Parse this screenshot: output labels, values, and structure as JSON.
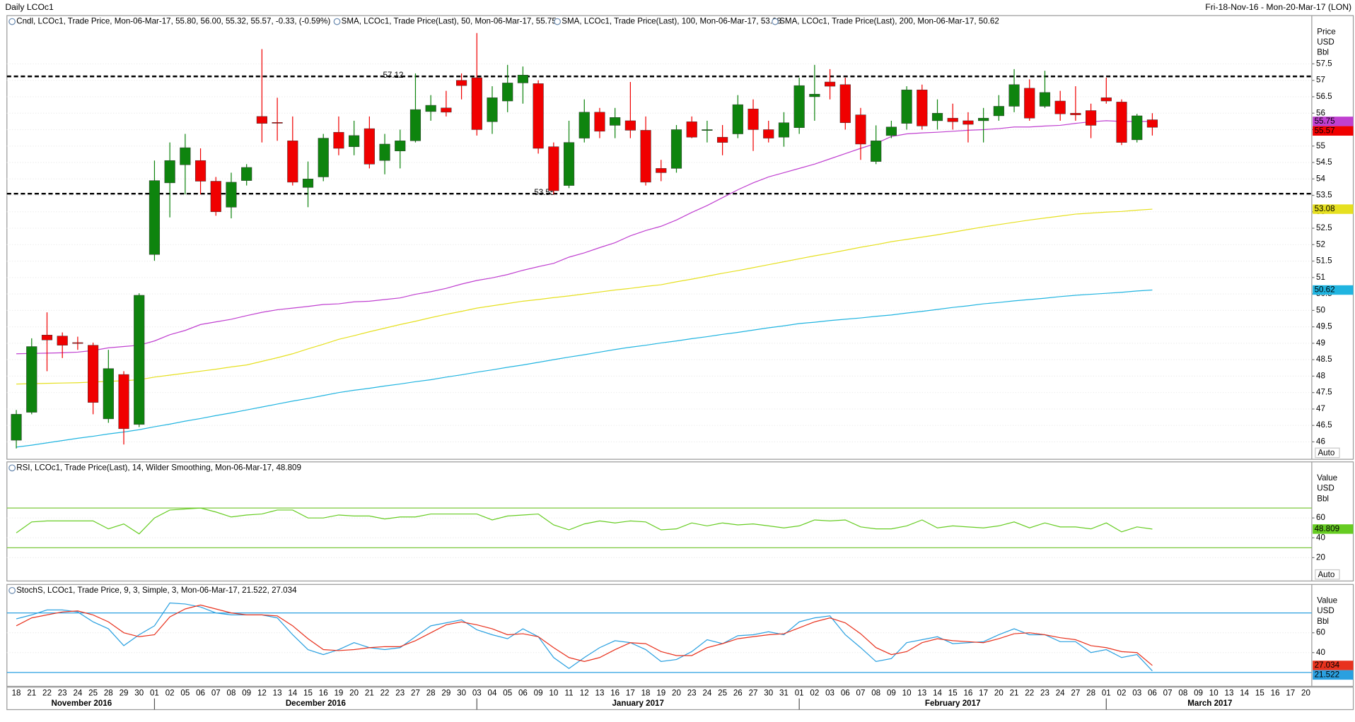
{
  "header": {
    "title": "Daily LCOc1",
    "range": "Fri-18-Nov-16 - Mon-20-Mar-17 (LON)"
  },
  "chart_data": [
    {
      "type": "candlestick",
      "legend": "Cndl, LCOc1, Trade Price, Mon-06-Mar-17, 55.80, 56.00, 55.32, 55.57, -0.33, (-0.59%)",
      "legend_color": "#e00000",
      "categories": [
        "18",
        "21",
        "22",
        "23",
        "24",
        "25",
        "28",
        "29",
        "30",
        "01",
        "02",
        "05",
        "06",
        "07",
        "08",
        "09",
        "12",
        "13",
        "14",
        "15",
        "16",
        "19",
        "20",
        "21",
        "22",
        "23",
        "27",
        "28",
        "29",
        "30",
        "03",
        "04",
        "05",
        "06",
        "09",
        "10",
        "11",
        "12",
        "13",
        "16",
        "17",
        "18",
        "19",
        "20",
        "23",
        "24",
        "25",
        "26",
        "27",
        "30",
        "31",
        "01",
        "02",
        "03",
        "06",
        "07",
        "08",
        "09",
        "10",
        "13",
        "14",
        "15",
        "16",
        "17",
        "20",
        "21",
        "22",
        "23",
        "24",
        "27",
        "28",
        "01",
        "02",
        "03",
        "06",
        "07",
        "08",
        "09",
        "10",
        "13",
        "14",
        "15",
        "16",
        "17",
        "20"
      ],
      "months": [
        "November 2016",
        "December 2016",
        "January 2017",
        "February 2017",
        "March 2017"
      ],
      "open": [
        46.05,
        46.9,
        49.25,
        49.22,
        49.02,
        48.94,
        46.7,
        48.05,
        46.53,
        51.7,
        53.88,
        54.43,
        54.56,
        53.93,
        53.14,
        53.95,
        55.9,
        55.72,
        55.16,
        53.74,
        54.06,
        55.42,
        54.98,
        55.53,
        54.56,
        54.85,
        55.16,
        56.05,
        56.16,
        57.0,
        57.08,
        55.74,
        56.37,
        56.92,
        56.9,
        54.98,
        53.8,
        55.24,
        56.03,
        55.63,
        55.77,
        55.48,
        54.32,
        54.32,
        55.74,
        55.48,
        55.27,
        55.37,
        56.13,
        55.5,
        55.27,
        55.56,
        56.5,
        56.95,
        56.87,
        55.95,
        54.53,
        55.32,
        55.69,
        56.71,
        55.77,
        55.85,
        55.77,
        55.77,
        55.92,
        56.21,
        56.76,
        56.21,
        56.37,
        56.0,
        56.08,
        56.47,
        56.34,
        55.19,
        55.8,
        null,
        null,
        null,
        null,
        null,
        null,
        null,
        null,
        null,
        null
      ],
      "high": [
        46.97,
        49.15,
        49.94,
        49.33,
        49.2,
        49.02,
        48.8,
        48.15,
        50.52,
        54.56,
        55.11,
        55.37,
        54.93,
        54.06,
        54.19,
        54.45,
        57.95,
        56.47,
        55.9,
        54.53,
        55.37,
        55.9,
        55.77,
        55.9,
        55.37,
        55.5,
        57.21,
        56.55,
        56.68,
        57.21,
        58.44,
        56.82,
        57.47,
        57.42,
        57.0,
        55.11,
        55.77,
        56.42,
        56.16,
        56.16,
        56.95,
        55.9,
        54.58,
        55.64,
        55.9,
        55.77,
        55.64,
        56.55,
        56.42,
        55.77,
        56.03,
        57.08,
        57.47,
        57.34,
        57.08,
        56.16,
        55.63,
        55.77,
        56.82,
        56.87,
        56.42,
        56.29,
        56.03,
        56.16,
        56.55,
        57.34,
        57.03,
        57.29,
        56.68,
        56.82,
        56.29,
        57.08,
        56.42,
        55.98,
        56.0,
        null,
        null,
        null,
        null,
        null,
        null,
        null,
        null,
        null,
        null
      ],
      "low": [
        45.8,
        46.84,
        48.15,
        48.55,
        48.8,
        46.84,
        46.58,
        45.92,
        46.45,
        51.51,
        52.83,
        53.53,
        53.53,
        52.88,
        52.8,
        53.8,
        55.11,
        55.16,
        53.8,
        53.14,
        53.93,
        54.72,
        54.72,
        54.32,
        54.14,
        54.32,
        55.11,
        55.77,
        55.9,
        56.42,
        55.32,
        55.37,
        56.03,
        56.29,
        54.77,
        53.53,
        53.72,
        55.11,
        55.24,
        55.24,
        55.24,
        53.8,
        53.93,
        54.19,
        55.24,
        55.11,
        54.72,
        55.24,
        54.85,
        55.11,
        54.98,
        55.37,
        55.77,
        56.42,
        55.5,
        54.58,
        54.45,
        55.24,
        55.5,
        55.5,
        55.5,
        55.5,
        55.11,
        55.11,
        55.77,
        56.03,
        55.77,
        56.16,
        55.77,
        55.77,
        55.24,
        56.29,
        55.03,
        55.11,
        55.32,
        null,
        null,
        null,
        null,
        null,
        null,
        null,
        null,
        null,
        null
      ],
      "close": [
        46.84,
        48.9,
        49.1,
        48.94,
        49.0,
        47.2,
        48.23,
        46.4,
        50.46,
        53.95,
        54.56,
        54.95,
        53.93,
        53.0,
        53.9,
        54.35,
        55.69,
        55.7,
        53.9,
        54.0,
        55.24,
        54.93,
        55.32,
        54.45,
        55.06,
        55.16,
        56.11,
        56.24,
        56.03,
        56.84,
        55.5,
        56.47,
        56.92,
        57.16,
        54.93,
        53.64,
        55.11,
        56.03,
        55.45,
        55.87,
        55.48,
        53.9,
        54.19,
        55.5,
        55.27,
        55.5,
        55.11,
        56.26,
        55.5,
        55.24,
        55.71,
        56.84,
        56.58,
        56.82,
        55.71,
        55.06,
        55.16,
        55.58,
        56.71,
        55.61,
        56.0,
        55.74,
        55.66,
        55.85,
        56.21,
        56.87,
        55.85,
        56.63,
        55.98,
        55.95,
        55.63,
        56.37,
        55.11,
        55.92,
        55.57,
        null,
        null,
        null,
        null,
        null,
        null,
        null,
        null,
        null,
        null
      ],
      "up_color": "#0e840e",
      "down_color": "#f00000",
      "series": [
        {
          "name": "SMA, LCOc1, Trade Price(Last),  50, Mon-06-Mar-17, 55.75",
          "color": "#c040d0",
          "values": [
            48.68,
            48.69,
            48.7,
            48.71,
            48.73,
            48.78,
            48.86,
            48.9,
            48.94,
            49.07,
            49.26,
            49.39,
            49.57,
            49.65,
            49.73,
            49.84,
            49.94,
            50.02,
            50.07,
            50.12,
            50.18,
            50.2,
            50.26,
            50.28,
            50.33,
            50.38,
            50.49,
            50.57,
            50.67,
            50.8,
            50.91,
            50.99,
            51.09,
            51.22,
            51.33,
            51.43,
            51.62,
            51.75,
            51.91,
            52.06,
            52.27,
            52.43,
            52.56,
            52.75,
            52.98,
            53.19,
            53.43,
            53.67,
            53.88,
            54.06,
            54.19,
            54.32,
            54.45,
            54.61,
            54.77,
            54.93,
            55.08,
            55.29,
            55.37,
            55.4,
            55.42,
            55.45,
            55.48,
            55.5,
            55.53,
            55.58,
            55.58,
            55.61,
            55.63,
            55.69,
            55.74,
            55.77,
            55.75,
            55.75,
            55.75,
            null,
            null,
            null,
            null,
            null,
            null,
            null,
            null,
            null,
            null
          ]
        },
        {
          "name": "SMA, LCOc1, Trade Price(Last),  100, Mon-06-Mar-17, 53.08",
          "color": "#e6e020",
          "values": [
            47.76,
            47.77,
            47.78,
            47.79,
            47.8,
            47.82,
            47.84,
            47.86,
            47.89,
            47.97,
            48.03,
            48.09,
            48.15,
            48.21,
            48.28,
            48.34,
            48.45,
            48.56,
            48.68,
            48.83,
            48.97,
            49.12,
            49.23,
            49.35,
            49.46,
            49.57,
            49.67,
            49.78,
            49.88,
            49.97,
            50.07,
            50.14,
            50.21,
            50.28,
            50.33,
            50.39,
            50.44,
            50.5,
            50.56,
            50.62,
            50.67,
            50.73,
            50.78,
            50.87,
            50.95,
            51.04,
            51.13,
            51.21,
            51.3,
            51.39,
            51.48,
            51.57,
            51.66,
            51.74,
            51.83,
            51.92,
            52.0,
            52.09,
            52.16,
            52.23,
            52.3,
            52.38,
            52.46,
            52.54,
            52.61,
            52.68,
            52.75,
            52.81,
            52.87,
            52.93,
            52.96,
            52.99,
            53.01,
            53.05,
            53.08,
            null,
            null,
            null,
            null,
            null,
            null,
            null,
            null,
            null,
            null
          ]
        },
        {
          "name": "SMA, LCOc1, Trade Price(Last),  200, Mon-06-Mar-17, 50.62",
          "color": "#20b4e0",
          "values": [
            45.84,
            45.9,
            45.97,
            46.04,
            46.11,
            46.17,
            46.24,
            46.3,
            46.37,
            46.46,
            46.54,
            46.63,
            46.71,
            46.8,
            46.88,
            46.97,
            47.06,
            47.15,
            47.24,
            47.32,
            47.41,
            47.5,
            47.57,
            47.63,
            47.7,
            47.76,
            47.83,
            47.89,
            47.97,
            48.04,
            48.12,
            48.19,
            48.27,
            48.34,
            48.42,
            48.5,
            48.58,
            48.65,
            48.73,
            48.81,
            48.88,
            48.94,
            49.01,
            49.07,
            49.14,
            49.2,
            49.27,
            49.33,
            49.4,
            49.47,
            49.53,
            49.6,
            49.64,
            49.69,
            49.73,
            49.77,
            49.82,
            49.86,
            49.92,
            49.97,
            50.03,
            50.09,
            50.14,
            50.2,
            50.24,
            50.29,
            50.33,
            50.37,
            50.42,
            50.46,
            50.49,
            50.52,
            50.55,
            50.59,
            50.62,
            null,
            null,
            null,
            null,
            null,
            null,
            null,
            null,
            null,
            null
          ]
        }
      ],
      "hlines": [
        57.12,
        53.55
      ],
      "ylim": [
        45.47,
        58.97
      ],
      "yticks": [
        46,
        46.5,
        47,
        47.5,
        48,
        48.5,
        49,
        49.5,
        50,
        50.5,
        51,
        51.5,
        52,
        52.5,
        53,
        53.5,
        54,
        54.5,
        55,
        55.5,
        56,
        56.5,
        57,
        57.5
      ],
      "grid": true,
      "axis_labels": [
        "Price",
        "USD",
        "Bbl"
      ],
      "auto_label": "Auto"
    },
    {
      "type": "line",
      "legend": "RSI, LCOc1, Trade Price(Last),  14, Wilder Smoothing, Mon-06-Mar-17, 48.809",
      "legend_color": "#5cb82a",
      "series": [
        {
          "color": "#66cc22",
          "values": [
            45,
            56,
            57,
            57,
            57,
            57,
            49,
            54,
            44,
            60,
            68,
            69,
            70,
            66,
            61,
            63,
            64,
            68,
            68,
            60,
            60,
            63,
            62,
            62,
            59,
            61,
            61,
            64,
            64,
            64,
            64,
            58,
            62,
            63,
            64,
            53,
            48,
            54,
            57,
            55,
            57,
            56,
            48,
            49,
            55,
            52,
            55,
            53,
            54,
            52,
            50,
            52,
            58,
            57,
            58,
            51,
            49,
            49,
            52,
            58,
            50,
            52,
            51,
            50,
            52,
            56,
            50,
            55,
            51,
            51,
            49,
            55,
            46,
            51,
            48.809,
            null,
            null,
            null,
            null,
            null,
            null,
            null,
            null,
            null,
            null
          ]
        }
      ],
      "bands": [
        30,
        70
      ],
      "band_color": "#7cc83c",
      "ylim": [
        -3.5,
        116.5
      ],
      "yticks": [
        20,
        40,
        60
      ],
      "grid": true,
      "axis_labels": [
        "Value",
        "USD",
        "Bbl"
      ],
      "auto_label": "Auto"
    },
    {
      "type": "line",
      "legend": "StochS, LCOc1, Trade Price,  9, 3, Simple, 3, Mon-06-Mar-17, 21.522, 27.034",
      "legend_color": "#1e8fd6",
      "series": [
        {
          "color": "#2aa0e0",
          "values": [
            74,
            78,
            83,
            83,
            81,
            71,
            64,
            47,
            58,
            67,
            90,
            89,
            86,
            80,
            78,
            78,
            78,
            75,
            58,
            43,
            38,
            43,
            50,
            45,
            43,
            45,
            56,
            67,
            70,
            73,
            63,
            58,
            54,
            64,
            56,
            35,
            24,
            35,
            45,
            52,
            50,
            43,
            31,
            33,
            41,
            53,
            49,
            57,
            58,
            61,
            58,
            71,
            75,
            77,
            58,
            45,
            31,
            34,
            50,
            53,
            56,
            49,
            50,
            51,
            58,
            64,
            58,
            58,
            51,
            51,
            40,
            43,
            35,
            38,
            21.522,
            null,
            null,
            null,
            null,
            null,
            null,
            null,
            null,
            null,
            null
          ]
        },
        {
          "color": "#e8321e",
          "values": [
            67,
            75,
            78,
            81,
            82,
            78,
            71,
            60,
            56,
            58,
            76,
            84,
            88,
            84,
            80,
            78,
            78,
            77,
            67,
            54,
            43,
            42,
            43,
            45,
            46,
            46,
            52,
            60,
            68,
            71,
            68,
            64,
            58,
            59,
            56,
            45,
            35,
            31,
            35,
            43,
            50,
            49,
            41,
            37,
            37,
            45,
            49,
            54,
            56,
            58,
            59,
            65,
            71,
            75,
            70,
            59,
            45,
            38,
            41,
            50,
            54,
            52,
            51,
            50,
            54,
            59,
            60,
            58,
            55,
            53,
            47,
            45,
            41,
            40,
            27.034,
            null,
            null,
            null,
            null,
            null,
            null,
            null,
            null,
            null,
            null
          ]
        }
      ],
      "bands": [
        20,
        80
      ],
      "band_color": "#2aa0e0",
      "ylim": [
        6,
        108.7
      ],
      "yticks": [
        40,
        60
      ],
      "grid": true,
      "axis_labels": [
        "Value",
        "USD",
        "Bbl"
      ]
    }
  ]
}
